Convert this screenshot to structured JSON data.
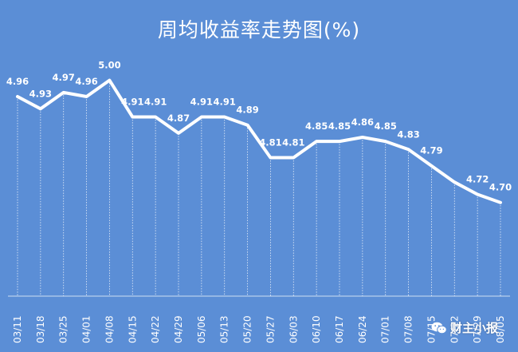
{
  "chart_data": {
    "type": "line",
    "title": "周均收益率走势图(%)",
    "categories": [
      "03/11",
      "03/18",
      "03/25",
      "04/01",
      "04/08",
      "04/15",
      "04/22",
      "04/29",
      "05/06",
      "05/13",
      "05/20",
      "05/27",
      "06/03",
      "06/10",
      "06/17",
      "06/24",
      "07/01",
      "07/08",
      "07/15",
      "07/22",
      "07/29",
      "08/05"
    ],
    "series": [
      {
        "values": [
          4.96,
          4.93,
          4.97,
          4.96,
          5.0,
          4.91,
          4.91,
          4.87,
          4.91,
          4.91,
          4.89,
          4.81,
          4.81,
          4.85,
          4.85,
          4.86,
          4.85,
          4.83,
          4.79,
          null,
          4.72,
          4.7
        ]
      }
    ],
    "data_labels": [
      "4.96",
      "4.93",
      "4.97",
      "4.96",
      "5.00",
      "4.91",
      "4.91",
      "4.87",
      "4.91",
      "4.91",
      "4.89",
      "4.81",
      "4.81",
      "4.85",
      "4.85",
      "4.86",
      "4.85",
      "4.83",
      "4.79",
      "",
      "4.72",
      "4.70"
    ],
    "line_points": [
      4.96,
      4.93,
      4.97,
      4.96,
      5.0,
      4.91,
      4.91,
      4.87,
      4.91,
      4.91,
      4.89,
      4.81,
      4.81,
      4.85,
      4.85,
      4.86,
      4.85,
      4.83,
      4.79,
      4.75,
      4.72,
      4.7
    ],
    "ylim": [
      4.47,
      5.06
    ],
    "grid": false,
    "legend": "none",
    "colors": {
      "background": "#5b8ed6",
      "line": "#ffffff",
      "text": "#ffffff"
    }
  },
  "watermark": {
    "text": "财主小报",
    "icon": "wechat-icon"
  }
}
